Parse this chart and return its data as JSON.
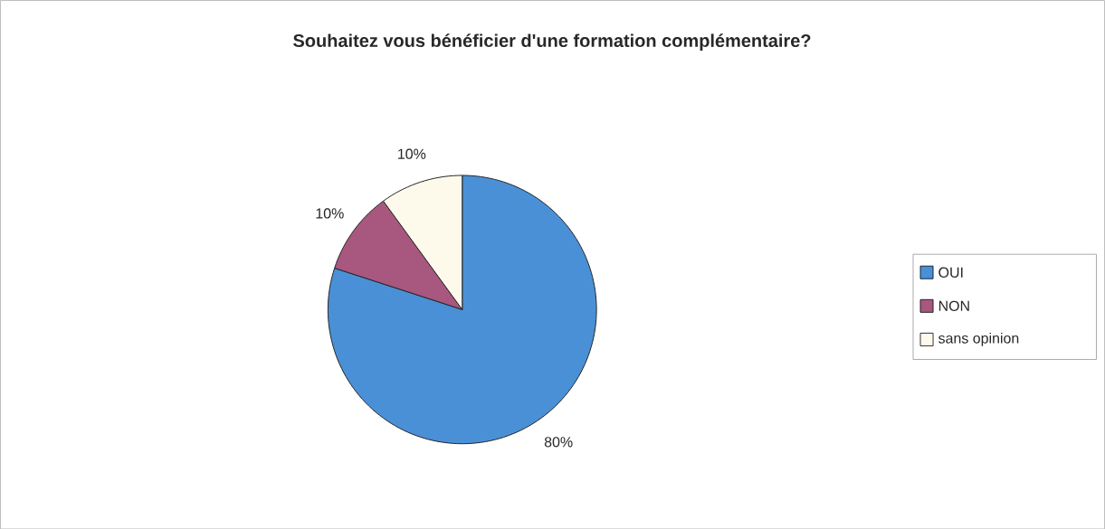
{
  "chart_data": {
    "type": "pie",
    "title": "Souhaitez vous bénéficier d'une formation complémentaire?",
    "categories": [
      "OUI",
      "NON",
      "sans opinion"
    ],
    "values": [
      80,
      10,
      10
    ],
    "value_labels": [
      "80%",
      "10%",
      "10%"
    ],
    "colors": [
      "#4a90d6",
      "#a8577f",
      "#fdfaec"
    ],
    "legend": "right"
  }
}
